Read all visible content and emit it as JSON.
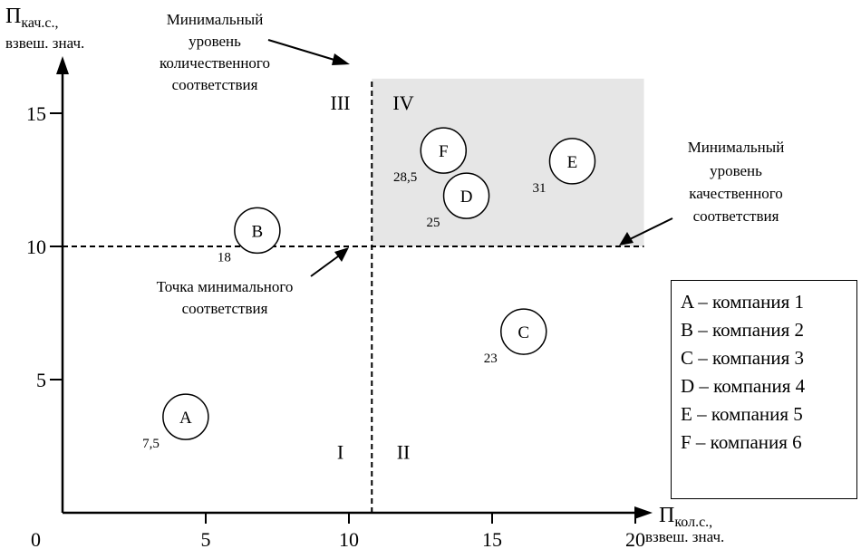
{
  "chart_data": {
    "type": "scatter",
    "x_axis": {
      "label_main": "П",
      "label_sub": "кол.с.,",
      "label_line2": "взвеш. знач.",
      "ticks": [
        "5",
        "10",
        "15",
        "20"
      ],
      "origin": "0",
      "xlim": [
        0,
        20.5
      ]
    },
    "y_axis": {
      "label_main": "П",
      "label_sub": "кач.с.,",
      "label_line2": "взвеш. знач.",
      "ticks": [
        "5",
        "10",
        "15"
      ],
      "ylim": [
        0,
        17
      ]
    },
    "points": [
      {
        "id": "A",
        "x": 4.3,
        "y": 3.6,
        "value": "7,5"
      },
      {
        "id": "B",
        "x": 6.8,
        "y": 10.6,
        "value": "18"
      },
      {
        "id": "C",
        "x": 16.1,
        "y": 6.8,
        "value": "23"
      },
      {
        "id": "D",
        "x": 14.1,
        "y": 11.9,
        "value": "25"
      },
      {
        "id": "E",
        "x": 17.8,
        "y": 13.2,
        "value": "31"
      },
      {
        "id": "F",
        "x": 13.3,
        "y": 13.6,
        "value": "28,5"
      }
    ],
    "thresholds": {
      "x": 10.8,
      "y": 10
    },
    "highlight_region": {
      "x": [
        10.8,
        20.3
      ],
      "y": [
        10,
        16.3
      ],
      "color": "#e6e6e6"
    },
    "quadrants": [
      {
        "label": "I",
        "x": 9.7,
        "y": 2.3
      },
      {
        "label": "II",
        "x": 11.9,
        "y": 2.3
      },
      {
        "label": "III",
        "x": 9.7,
        "y": 15.4
      },
      {
        "label": "IV",
        "x": 11.9,
        "y": 15.4
      }
    ],
    "annotations": {
      "min_quantity": [
        "Минимальный",
        "уровень",
        "количественного",
        "соответствия"
      ],
      "min_quality": [
        "Минимальный",
        "уровень",
        "качественного",
        "соответствия"
      ],
      "min_point": [
        "Точка минимального",
        "соответствия"
      ]
    },
    "legend": [
      "A – компания 1",
      "B – компания 2",
      "C – компания 3",
      "D – компания 4",
      "E – компания 5",
      "F – компания 6"
    ]
  }
}
